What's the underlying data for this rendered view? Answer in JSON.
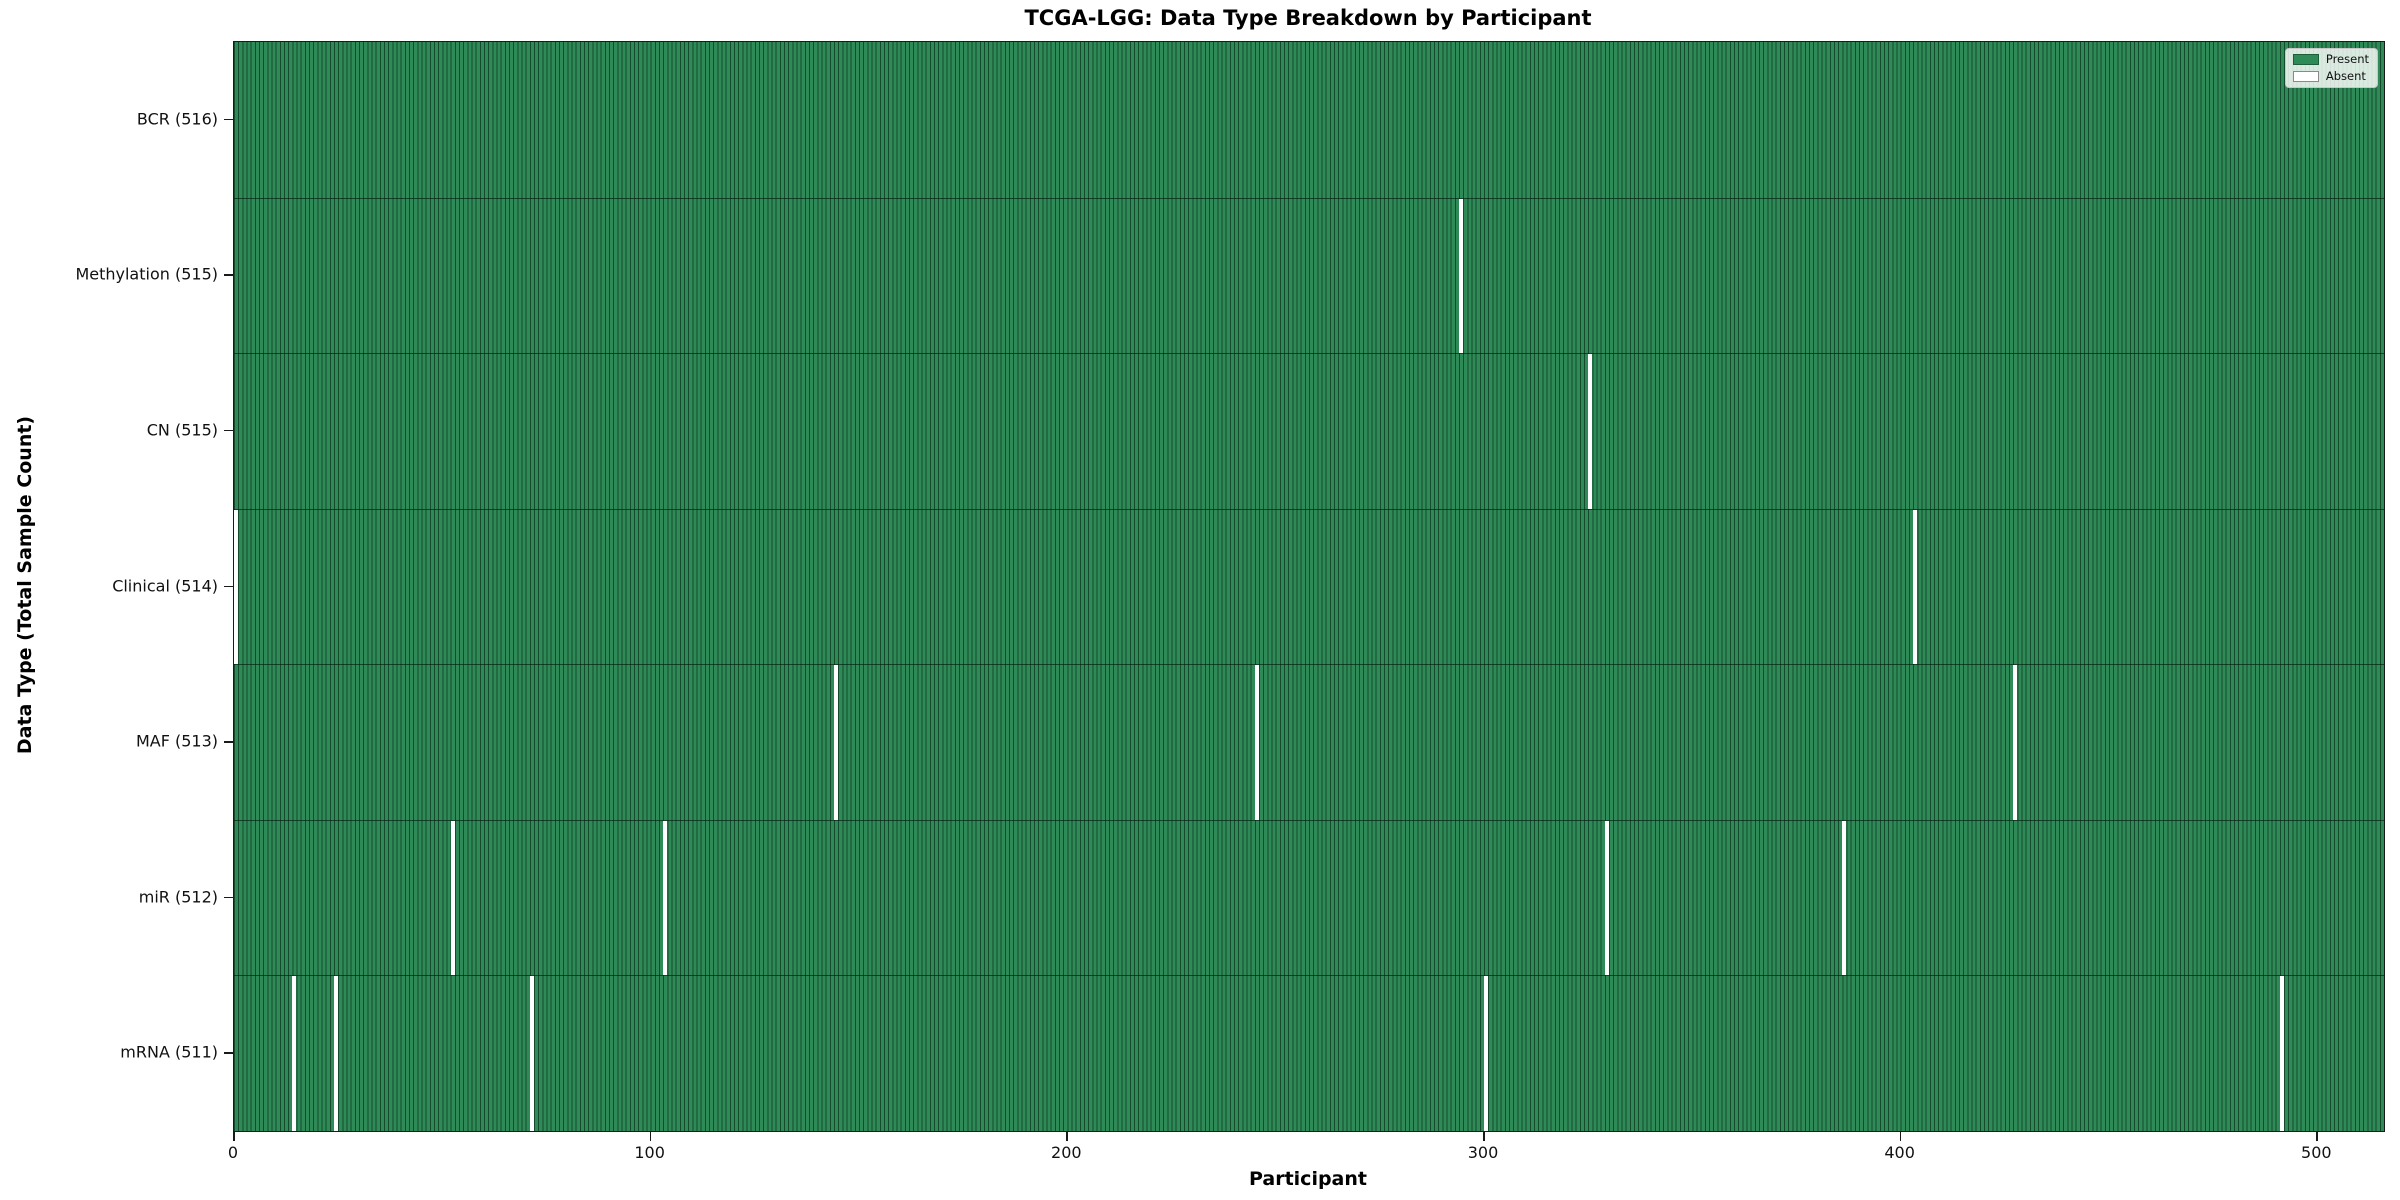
{
  "title": "TCGA-LGG: Data Type Breakdown by Participant",
  "xlabel": "Participant",
  "ylabel": "Data Type (Total Sample Count)",
  "legend": {
    "present_label": "Present",
    "absent_label": "Absent"
  },
  "colors": {
    "present": "#2e8b57",
    "absent": "#ffffff",
    "cell_edge": "rgba(0,22,10,0.55)",
    "axis": "#1a1a1a"
  },
  "chart_data": {
    "type": "heatmap",
    "title": "TCGA-LGG: Data Type Breakdown by Participant",
    "xlabel": "Participant",
    "ylabel": "Data Type (Total Sample Count)",
    "x_range": [
      0,
      516
    ],
    "x_ticks": [
      0,
      100,
      200,
      300,
      400,
      500
    ],
    "grid": false,
    "legend_position": "upper right",
    "legend_entries": [
      {
        "label": "Present",
        "color": "#2e8b57"
      },
      {
        "label": "Absent",
        "color": "#ffffff"
      }
    ],
    "rows": [
      {
        "label": "BCR (516)",
        "data_type": "BCR",
        "total_samples": 516,
        "absent_participants": []
      },
      {
        "label": "Methylation (515)",
        "data_type": "Methylation",
        "total_samples": 515,
        "absent_participants": [
          294
        ]
      },
      {
        "label": "CN (515)",
        "data_type": "CN",
        "total_samples": 515,
        "absent_participants": [
          325
        ]
      },
      {
        "label": "Clinical (514)",
        "data_type": "Clinical",
        "total_samples": 514,
        "absent_participants": [
          0,
          403
        ]
      },
      {
        "label": "MAF (513)",
        "data_type": "MAF",
        "total_samples": 513,
        "absent_participants": [
          144,
          245,
          427
        ]
      },
      {
        "label": "miR (512)",
        "data_type": "miR",
        "total_samples": 512,
        "absent_participants": [
          52,
          103,
          329,
          386
        ]
      },
      {
        "label": "mRNA (511)",
        "data_type": "mRNA",
        "total_samples": 511,
        "absent_participants": [
          14,
          24,
          71,
          300,
          491
        ]
      }
    ]
  }
}
